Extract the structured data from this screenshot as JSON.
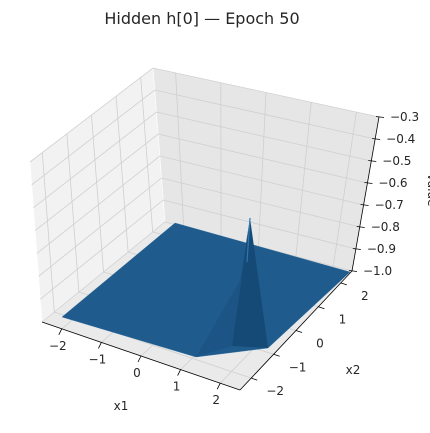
{
  "chart_data": {
    "type": "surface3d",
    "title": "Hidden h[0] — Epoch 50",
    "xlabel": "x1",
    "ylabel": "x2",
    "zlabel": "value",
    "xlim": [
      -2.5,
      2.5
    ],
    "ylim": [
      -2.5,
      2.5
    ],
    "zlim": [
      -1.0,
      -0.3
    ],
    "xticks": [
      "−2",
      "−1",
      "0",
      "1",
      "2"
    ],
    "yticks": [
      "−2",
      "−1",
      "0",
      "1",
      "2"
    ],
    "zticks": [
      "−0.3",
      "−0.4",
      "−0.5",
      "−0.6",
      "−0.7",
      "−0.8",
      "−0.9",
      "−1.0"
    ],
    "surface": {
      "base_value": -1.0,
      "peak": {
        "x1": 2.5,
        "x2": -0.4,
        "value": -0.38
      },
      "color": "#1f5b8c"
    },
    "grid": true
  }
}
